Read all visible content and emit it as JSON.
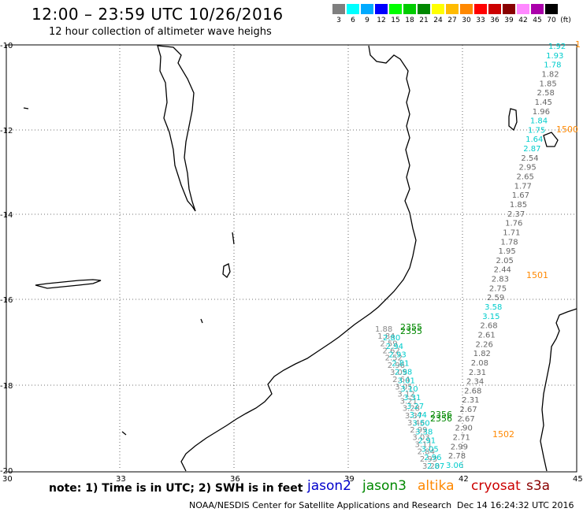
{
  "header": {
    "title": "12:00 – 23:59 UTC 10/26/2016",
    "subtitle": "12 hour collection of altimeter wave heighs"
  },
  "scale": {
    "labels": [
      "3",
      "6",
      "9",
      "12",
      "15",
      "18",
      "21",
      "24",
      "27",
      "30",
      "33",
      "36",
      "39",
      "42",
      "45",
      "70",
      "(ft)"
    ],
    "colors": [
      "#7f7f7f",
      "#00ffff",
      "#00aaff",
      "#0000ff",
      "#00ff00",
      "#00cc00",
      "#008800",
      "#ffff00",
      "#ffbb00",
      "#ff8800",
      "#ff0000",
      "#cc0000",
      "#880000",
      "#ff88ff",
      "#aa00aa",
      "#000000"
    ]
  },
  "axes": {
    "lat_labels": [
      "-10",
      "-12",
      "-14",
      "-16",
      "-18",
      "-20"
    ],
    "lon_labels": [
      "30",
      "33",
      "36",
      "39",
      "42",
      "45"
    ]
  },
  "tracks": {
    "east_track": [
      "1.92",
      "1.93",
      "1.78",
      "1.82",
      "1.85",
      "2.58",
      "1.45",
      "1.96",
      "1.84",
      "1.75",
      "1.64",
      "2.87",
      "2.54",
      "2.95",
      "2.65",
      "1.77",
      "1.67",
      "1.85",
      "2.37",
      "1.76",
      "1.71",
      "1.78",
      "1.95",
      "2.05",
      "2.44",
      "2.83",
      "2.75",
      "2.59",
      "3.58",
      "3.15",
      "2.68",
      "2.61",
      "2.26",
      "1.82",
      "2.08",
      "2.31",
      "2.34",
      "2.68",
      "2.31",
      "2.67",
      "2.67",
      "2.90",
      "2.71",
      "2.99",
      "2.78",
      "3.06"
    ],
    "west_track_a": [
      "1.88",
      "1.84",
      "2.59",
      "2.62",
      "2.52",
      "2.96",
      "3.05",
      "2.64",
      "3.05",
      "3.12",
      "3.21",
      "3.28",
      "3.37",
      "3.46",
      "2.99",
      "3.03",
      "3.11",
      "2.84",
      "2.93",
      "3.20"
    ],
    "west_track_b": [
      "2.80",
      "2.94",
      "2.93",
      "2.81",
      "2.98",
      "3.01",
      "3.10",
      "3.31",
      "3.27",
      "3.44",
      "3.50",
      "3.38",
      "2.91",
      "3.05",
      "2.96",
      "2.87"
    ],
    "pass_labels": [
      "1500",
      "1501",
      "1502",
      "2355",
      "2356",
      "2355",
      "2356",
      "1"
    ]
  },
  "footer": {
    "note": "note: 1) Time is in UTC; 2) SWH is in feet",
    "legend": [
      {
        "label": "jason2",
        "color": "#0000cc"
      },
      {
        "label": "jason3",
        "color": "#008800"
      },
      {
        "label": "altika",
        "color": "#ff8800"
      },
      {
        "label": "cryosat",
        "color": "#cc0000"
      },
      {
        "label": "s3a",
        "color": "#880000"
      }
    ],
    "credit": "NOAA/NESDIS Center for Satellite Applications and Research",
    "timestamp": "Dec 14 16:24:32 UTC 2016"
  }
}
